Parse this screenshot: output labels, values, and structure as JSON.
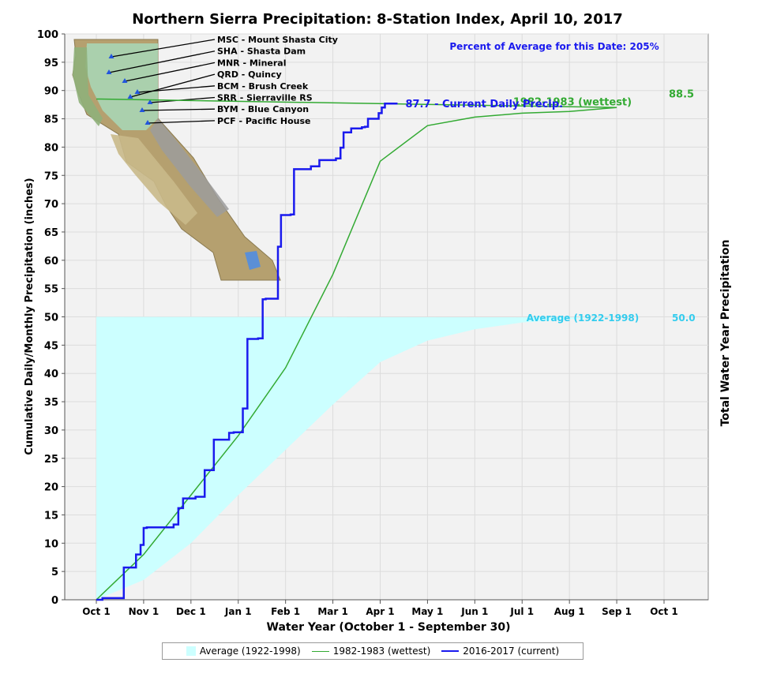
{
  "chart_data": {
    "type": "line",
    "title": "Northern Sierra Precipitation: 8-Station Index, April 10, 2017",
    "xlabel": "Water Year (October 1 - September 30)",
    "ylabel": "Cumulative Daily/Monthly Precipitation (inches)",
    "y2label": "Total Water Year Precipitation",
    "annotation": "Percent of Average for this Date: 205%",
    "ylim": [
      0,
      100
    ],
    "yticks": [
      0,
      5,
      10,
      15,
      20,
      25,
      30,
      35,
      40,
      45,
      50,
      55,
      60,
      65,
      70,
      75,
      80,
      85,
      90,
      95,
      100
    ],
    "xticks": [
      "Oct 1",
      "Nov 1",
      "Dec 1",
      "Jan 1",
      "Feb 1",
      "Mar 1",
      "Apr 1",
      "May 1",
      "Jun 1",
      "Jul 1",
      "Aug 1",
      "Sep 1",
      "Oct 1"
    ],
    "grid": true,
    "legend_position": "bottom",
    "series": [
      {
        "name": "Average (1922-1998)",
        "style": "area",
        "color": "#ccffff",
        "x": [
          "Oct 1",
          "Nov 1",
          "Dec 1",
          "Jan 1",
          "Feb 1",
          "Mar 1",
          "Apr 1",
          "May 1",
          "Jun 1",
          "Jul 1",
          "Aug 1",
          "Sep 1",
          "Oct 1"
        ],
        "values": [
          0,
          3.5,
          10,
          18.5,
          26.5,
          34.5,
          42,
          45.8,
          47.8,
          49,
          49.6,
          49.9,
          50
        ],
        "end_label": "50.0",
        "inline_label": "Average (1922-1998)"
      },
      {
        "name": "1982-1983 (wettest)",
        "style": "line",
        "color": "#33aa33",
        "x": [
          "Oct 1",
          "Nov 1",
          "Dec 1",
          "Jan 1",
          "Feb 1",
          "Mar 1",
          "Apr 1",
          "May 1",
          "Jun 1",
          "Jul 1",
          "Aug 1",
          "Sep 1",
          "Oct 1"
        ],
        "values": [
          0,
          8,
          18.5,
          29,
          41,
          57.5,
          77.5,
          83.8,
          85.3,
          86,
          86.3,
          87,
          88.5
        ],
        "end_label": "88.5",
        "inline_label": "1982-1983 (wettest)"
      },
      {
        "name": "2016-2017 (current)",
        "style": "step",
        "color": "#1a1aee",
        "x_days": [
          0,
          4,
          15,
          18,
          23,
          26,
          29,
          31,
          33,
          50,
          53,
          56,
          64,
          70,
          76,
          86,
          89,
          95,
          98,
          105,
          108,
          110,
          118,
          120,
          126,
          128,
          138,
          143,
          153,
          156,
          158,
          163,
          170,
          172,
          174,
          181,
          183,
          185,
          187,
          189,
          191,
          193
        ],
        "values": [
          0,
          0.3,
          0.3,
          5.7,
          5.7,
          8,
          9.7,
          12.7,
          12.8,
          13.3,
          16.2,
          17.9,
          18.2,
          22.9,
          28.3,
          29.5,
          29.6,
          33.8,
          46.1,
          46.2,
          53.1,
          53.2,
          62.4,
          68,
          68.1,
          76.1,
          76.6,
          77.7,
          78,
          79.9,
          82.6,
          83.3,
          83.5,
          83.6,
          85,
          86,
          87,
          87.7,
          87.7,
          87.7,
          87.7,
          87.7
        ],
        "end_label": "87.7 -  Current Daily Precip."
      }
    ]
  },
  "map_inset": {
    "stations": [
      "MSC - Mount Shasta City",
      "SHA - Shasta Dam",
      "MNR - Mineral",
      "QRD - Quincy",
      "BCM - Brush Creek",
      "SRR - Sierraville RS",
      "BYM - Blue Canyon",
      "PCF - Pacific House"
    ]
  },
  "colors": {
    "title": "#000000",
    "annotation": "#1a1aee",
    "average_label": "#33ccee",
    "wettest_label": "#33aa33",
    "current_label": "#1a1aee"
  }
}
